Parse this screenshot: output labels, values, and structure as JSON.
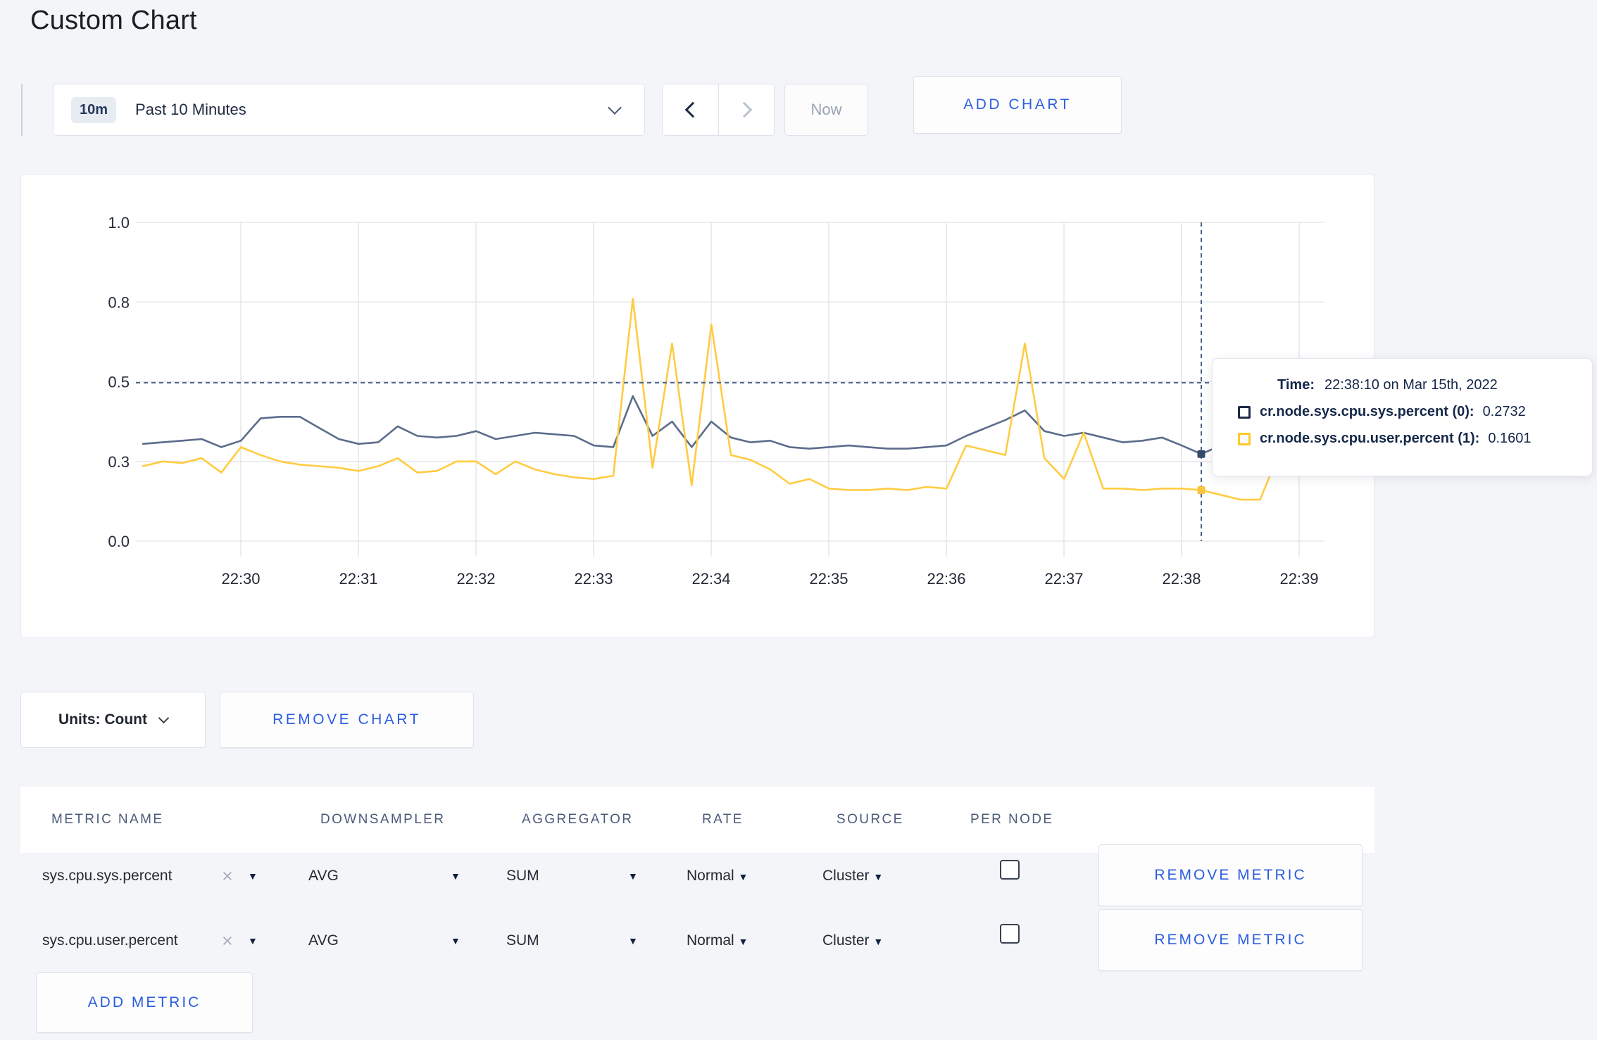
{
  "page": {
    "title": "Custom Chart"
  },
  "toolbar": {
    "time_range": {
      "badge": "10m",
      "label": "Past 10 Minutes"
    },
    "now_label": "Now",
    "add_chart_label": "ADD CHART"
  },
  "chart_data": {
    "type": "line",
    "title": "",
    "xlabel": "time",
    "ylabel": "",
    "ylim": [
      0,
      1
    ],
    "grid": true,
    "x_start": "22:29:10",
    "x_interval_seconds": 10,
    "x_tick_labels": [
      "22:30",
      "22:31",
      "22:32",
      "22:33",
      "22:34",
      "22:35",
      "22:36",
      "22:37",
      "22:38",
      "22:39"
    ],
    "y_tick_labels": [
      "0.0",
      "0.3",
      "0.5",
      "0.8",
      "1.0"
    ],
    "y_tick_values": [
      0,
      0.25,
      0.5,
      0.75,
      1.0
    ],
    "series": [
      {
        "name": "cr.node.sys.cpu.sys.percent",
        "color": "#5c6c8c",
        "values": [
          0.305,
          0.31,
          0.315,
          0.32,
          0.295,
          0.315,
          0.385,
          0.39,
          0.39,
          0.355,
          0.32,
          0.305,
          0.31,
          0.36,
          0.33,
          0.325,
          0.33,
          0.345,
          0.32,
          0.33,
          0.34,
          0.335,
          0.33,
          0.3,
          0.295,
          0.455,
          0.33,
          0.375,
          0.295,
          0.375,
          0.325,
          0.31,
          0.315,
          0.295,
          0.29,
          0.295,
          0.3,
          0.295,
          0.29,
          0.29,
          0.295,
          0.3,
          0.33,
          0.355,
          0.38,
          0.41,
          0.345,
          0.33,
          0.34,
          0.325,
          0.31,
          0.315,
          0.325,
          0.3,
          0.2732,
          0.3,
          0.31,
          0.315,
          0.3,
          0.295,
          0.305
        ]
      },
      {
        "name": "cr.node.sys.cpu.user.percent",
        "color": "#ffcc41",
        "values": [
          0.235,
          0.25,
          0.245,
          0.26,
          0.215,
          0.295,
          0.27,
          0.25,
          0.24,
          0.235,
          0.23,
          0.22,
          0.235,
          0.26,
          0.215,
          0.22,
          0.25,
          0.25,
          0.21,
          0.25,
          0.225,
          0.21,
          0.2,
          0.195,
          0.205,
          0.76,
          0.23,
          0.62,
          0.175,
          0.68,
          0.27,
          0.255,
          0.225,
          0.18,
          0.195,
          0.165,
          0.16,
          0.16,
          0.165,
          0.16,
          0.17,
          0.165,
          0.3,
          0.285,
          0.27,
          0.62,
          0.26,
          0.195,
          0.34,
          0.165,
          0.165,
          0.16,
          0.165,
          0.165,
          0.1601,
          0.145,
          0.13,
          0.13,
          0.28,
          0.3,
          0.25
        ]
      }
    ],
    "crosshair": {
      "time": "22:38:10",
      "x_index": 54,
      "y_value": 0.497,
      "points": [
        {
          "value": 0.2732,
          "color": "#35496b"
        },
        {
          "value": 0.1601,
          "color": "#f8c53d"
        }
      ]
    }
  },
  "tooltip": {
    "time_label": "Time:",
    "time_value": "22:38:10 on Mar 15th, 2022",
    "series": [
      {
        "name": "cr.node.sys.cpu.sys.percent (0):",
        "value": "0.2732",
        "color": "#1c2b4a"
      },
      {
        "name": "cr.node.sys.cpu.user.percent (1):",
        "value": "0.1601",
        "color": "#ffc927"
      }
    ]
  },
  "units": {
    "label": "Units: Count"
  },
  "remove_chart_label": "REMOVE CHART",
  "metrics_table": {
    "columns": [
      "METRIC NAME",
      "DOWNSAMPLER",
      "AGGREGATOR",
      "RATE",
      "SOURCE",
      "PER NODE"
    ],
    "rows": [
      {
        "metric": "sys.cpu.sys.percent",
        "clear": "×",
        "downsampler": "AVG",
        "aggregator": "SUM",
        "rate": "Normal",
        "source": "Cluster",
        "per_node_checked": false,
        "remove_label": "REMOVE METRIC"
      },
      {
        "metric": "sys.cpu.user.percent",
        "clear": "×",
        "downsampler": "AVG",
        "aggregator": "SUM",
        "rate": "Normal",
        "source": "Cluster",
        "per_node_checked": false,
        "remove_label": "REMOVE METRIC"
      }
    ],
    "add_metric_label": "ADD METRIC"
  }
}
